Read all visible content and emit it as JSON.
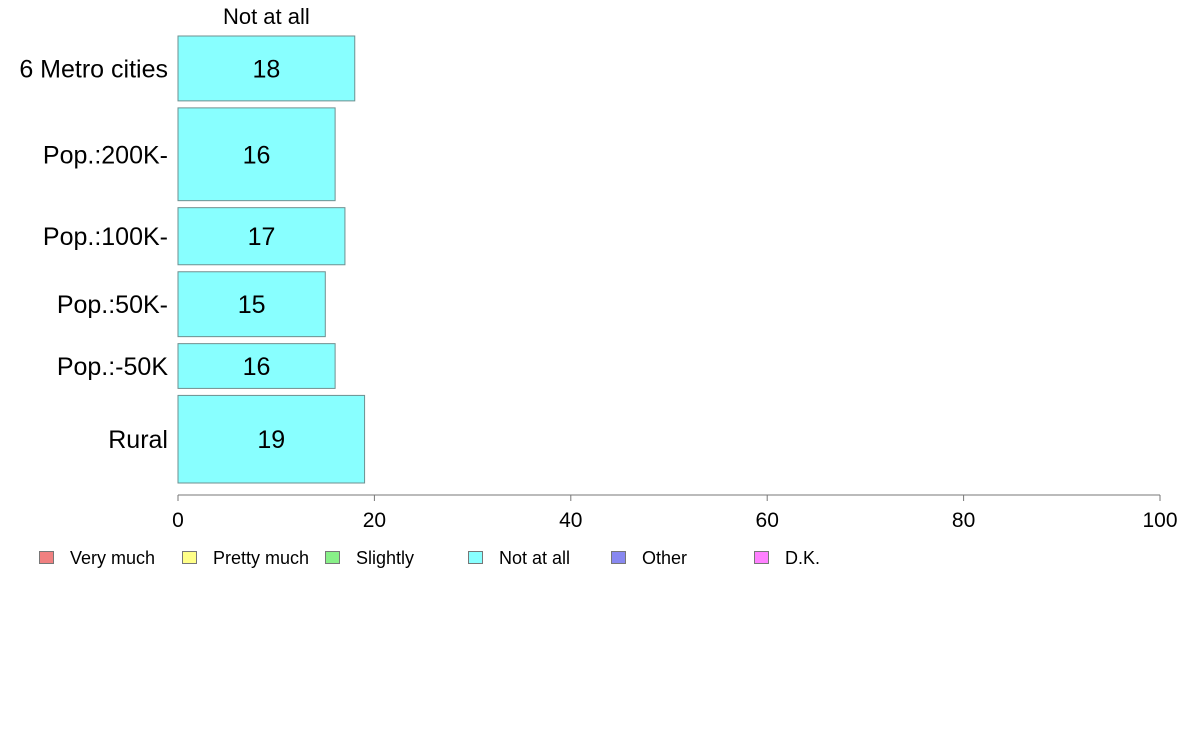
{
  "chart_data": {
    "type": "bar",
    "orientation": "horizontal",
    "title": "Not at all",
    "categories": [
      "6 Metro cities",
      "Pop.:200K-",
      "Pop.:100K-",
      "Pop.:50K-",
      "Pop.:-50K",
      "Rural"
    ],
    "category_weights": [
      1.0,
      1.43,
      0.88,
      1.0,
      0.69,
      1.35
    ],
    "series": [
      {
        "name": "Not at all",
        "values": [
          18,
          16,
          17,
          15,
          16,
          19
        ],
        "color": "#88ffff"
      }
    ],
    "xlim": [
      0,
      100
    ],
    "x_ticks": [
      0,
      20,
      40,
      60,
      80,
      100
    ],
    "x_tick_labels": [
      "0",
      "20",
      "40",
      "60",
      "80",
      "100"
    ],
    "grid": false,
    "legend_position": "bottom-left",
    "legend": [
      {
        "name": "Very much",
        "color": "#f08080"
      },
      {
        "name": "Pretty much",
        "color": "#ffff88"
      },
      {
        "name": "Slightly",
        "color": "#88f088"
      },
      {
        "name": "Not at all",
        "color": "#88ffff"
      },
      {
        "name": "Other",
        "color": "#8888f0"
      },
      {
        "name": "D.K.",
        "color": "#ff80ff"
      }
    ]
  }
}
